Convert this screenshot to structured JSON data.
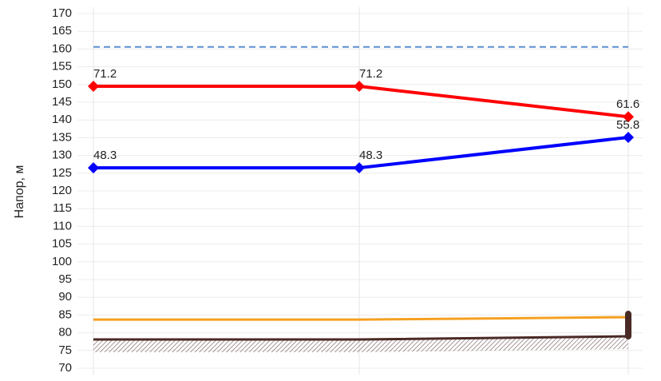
{
  "chart_data": {
    "type": "line",
    "y_label": "Напор, м",
    "categories": [
      null,
      null,
      null
    ],
    "ylim": [
      70,
      170
    ],
    "yticks": [
      70,
      75,
      80,
      85,
      90,
      95,
      100,
      105,
      110,
      115,
      120,
      125,
      130,
      135,
      140,
      145,
      150,
      155,
      160,
      165,
      170
    ],
    "grid": true,
    "series": [
      {
        "color": "#ff0000",
        "values": [
          149.5,
          149.5,
          140.9
        ],
        "markers": true
      },
      {
        "color": "#0000ff",
        "values": [
          126.5,
          126.5,
          135.1
        ],
        "markers": true
      },
      {
        "color": "#5b8fd0",
        "values": [
          160.6,
          160.6,
          160.6
        ],
        "dashed": true
      },
      {
        "color": "#f5a020",
        "values": [
          83.7,
          83.7,
          84.4
        ]
      },
      {
        "color": "#4a2a25",
        "values": [
          78.1,
          78.1,
          79.0
        ],
        "hatch": true
      }
    ],
    "annotations": [
      {
        "text": "71.2",
        "series": 0,
        "index": 0
      },
      {
        "text": "71.2",
        "series": 0,
        "index": 1
      },
      {
        "text": "61.6",
        "series": 0,
        "index": 2
      },
      {
        "text": "48.3",
        "series": 1,
        "index": 0
      },
      {
        "text": "48.3",
        "series": 1,
        "index": 1
      },
      {
        "text": "55.8",
        "series": 1,
        "index": 2
      }
    ]
  }
}
